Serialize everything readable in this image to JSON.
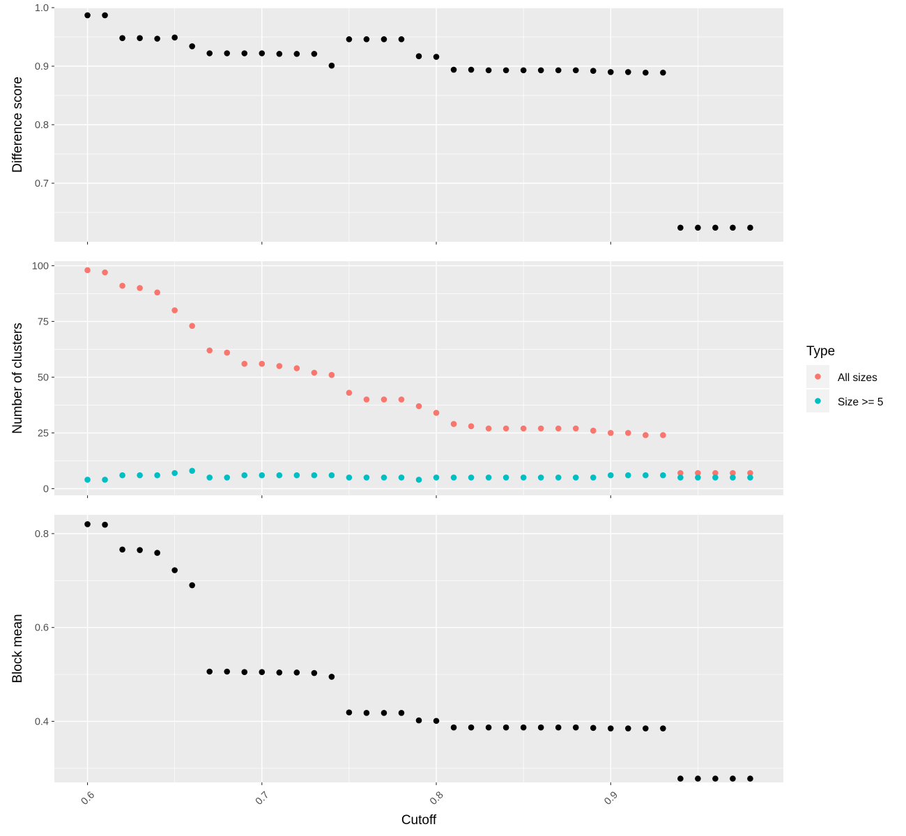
{
  "chart_data": [
    {
      "type": "scatter",
      "panel": "difference-score",
      "ylabel": "Difference score",
      "yticks": [
        0.7,
        0.8,
        0.9,
        1.0
      ],
      "ytick_labels": [
        "0.7",
        "0.8",
        "0.9",
        "1.0"
      ],
      "ylim": [
        0.6,
        1.0
      ],
      "x": [
        0.6,
        0.61,
        0.62,
        0.63,
        0.64,
        0.65,
        0.66,
        0.67,
        0.68,
        0.69,
        0.7,
        0.71,
        0.72,
        0.73,
        0.74,
        0.75,
        0.76,
        0.77,
        0.78,
        0.79,
        0.8,
        0.81,
        0.82,
        0.83,
        0.84,
        0.85,
        0.86,
        0.87,
        0.88,
        0.89,
        0.9,
        0.91,
        0.92,
        0.93,
        0.94,
        0.95,
        0.96,
        0.97,
        0.98
      ],
      "series": [
        {
          "color": "#000000",
          "values": [
            0.987,
            0.987,
            0.948,
            0.948,
            0.947,
            0.949,
            0.934,
            0.922,
            0.922,
            0.922,
            0.922,
            0.921,
            0.921,
            0.921,
            0.901,
            0.946,
            0.946,
            0.946,
            0.946,
            0.917,
            0.916,
            0.894,
            0.894,
            0.893,
            0.893,
            0.893,
            0.893,
            0.893,
            0.893,
            0.892,
            0.89,
            0.89,
            0.889,
            0.889,
            0.624,
            0.624,
            0.624,
            0.624,
            0.624
          ]
        }
      ]
    },
    {
      "type": "scatter",
      "panel": "number-of-clusters",
      "ylabel": "Number of clusters",
      "yticks": [
        0,
        25,
        50,
        75,
        100
      ],
      "ytick_labels": [
        "0",
        "25",
        "50",
        "75",
        "100"
      ],
      "ylim": [
        -3,
        102
      ],
      "x": [
        0.6,
        0.61,
        0.62,
        0.63,
        0.64,
        0.65,
        0.66,
        0.67,
        0.68,
        0.69,
        0.7,
        0.71,
        0.72,
        0.73,
        0.74,
        0.75,
        0.76,
        0.77,
        0.78,
        0.79,
        0.8,
        0.81,
        0.82,
        0.83,
        0.84,
        0.85,
        0.86,
        0.87,
        0.88,
        0.89,
        0.9,
        0.91,
        0.92,
        0.93,
        0.94,
        0.95,
        0.96,
        0.97,
        0.98
      ],
      "series": [
        {
          "name": "All sizes",
          "color": "#f8766d",
          "values": [
            98,
            97,
            91,
            90,
            88,
            80,
            73,
            62,
            61,
            56,
            56,
            55,
            54,
            52,
            51,
            43,
            40,
            40,
            40,
            37,
            34,
            29,
            28,
            27,
            27,
            27,
            27,
            27,
            27,
            26,
            25,
            25,
            24,
            24,
            7,
            7,
            7,
            7,
            7
          ]
        },
        {
          "name": "Size >= 5",
          "color": "#00bfc4",
          "values": [
            4,
            4,
            6,
            6,
            6,
            7,
            8,
            5,
            5,
            6,
            6,
            6,
            6,
            6,
            6,
            5,
            5,
            5,
            5,
            4,
            5,
            5,
            5,
            5,
            5,
            5,
            5,
            5,
            5,
            5,
            6,
            6,
            6,
            6,
            5,
            5,
            5,
            5,
            5
          ]
        }
      ],
      "legend": {
        "title": "Type",
        "placement": "right",
        "entries": [
          "All sizes",
          "Size >= 5"
        ]
      }
    },
    {
      "type": "scatter",
      "panel": "block-mean",
      "ylabel": "Block mean",
      "xlabel": "Cutoff",
      "yticks": [
        0.4,
        0.6,
        0.8
      ],
      "ytick_labels": [
        "0.4",
        "0.6",
        "0.8"
      ],
      "ylim": [
        0.27,
        0.84
      ],
      "x": [
        0.6,
        0.61,
        0.62,
        0.63,
        0.64,
        0.65,
        0.66,
        0.67,
        0.68,
        0.69,
        0.7,
        0.71,
        0.72,
        0.73,
        0.74,
        0.75,
        0.76,
        0.77,
        0.78,
        0.79,
        0.8,
        0.81,
        0.82,
        0.83,
        0.84,
        0.85,
        0.86,
        0.87,
        0.88,
        0.89,
        0.9,
        0.91,
        0.92,
        0.93,
        0.94,
        0.95,
        0.96,
        0.97,
        0.98
      ],
      "series": [
        {
          "color": "#000000",
          "values": [
            0.82,
            0.819,
            0.766,
            0.765,
            0.759,
            0.722,
            0.69,
            0.506,
            0.506,
            0.505,
            0.505,
            0.504,
            0.504,
            0.503,
            0.495,
            0.419,
            0.418,
            0.418,
            0.418,
            0.402,
            0.401,
            0.387,
            0.387,
            0.387,
            0.387,
            0.387,
            0.387,
            0.387,
            0.387,
            0.386,
            0.385,
            0.385,
            0.385,
            0.385,
            0.278,
            0.278,
            0.278,
            0.278,
            0.278
          ]
        }
      ]
    }
  ],
  "x_axis": {
    "label": "Cutoff",
    "ticks": [
      0.6,
      0.7,
      0.8,
      0.9
    ],
    "tick_labels": [
      "0.6",
      "0.7",
      "0.8",
      "0.9"
    ],
    "xlim": [
      0.581,
      0.999
    ]
  },
  "colors": {
    "panel_background": "#ebebeb",
    "grid": "#ffffff"
  }
}
